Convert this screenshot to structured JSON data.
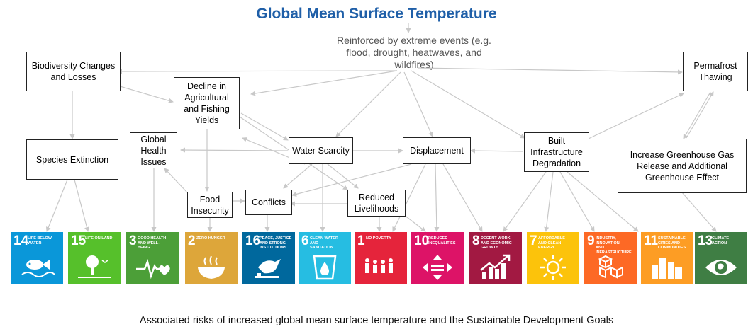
{
  "title": "Global Mean Surface Temperature",
  "note": "Reinforced by extreme events (e.g. flood, drought, heatwaves, and wildfires)",
  "nodes": {
    "biodiversity": "Biodiversity Changes and Losses",
    "decline_agri": "Decline in Agricultural and Fishing Yields",
    "permafrost": "Permafrost Thawing",
    "species": "Species Extinction",
    "global_health": "Global Health Issues",
    "water_scarcity": "Water Scarcity",
    "displacement": "Displacement",
    "built_infra": "Built Infrastructure Degradation",
    "greenhouse": "Increase Greenhouse Gas Release and Additional Greenhouse Effect",
    "food_insecurity": "Food Insecurity",
    "conflicts": "Conflicts",
    "reduced_livelihoods": "Reduced Livelihoods"
  },
  "sdgs": [
    {
      "num": "14",
      "label": "LIFE BELOW WATER",
      "color": "#0a97d9",
      "icon": "fish-icon"
    },
    {
      "num": "15",
      "label": "LIFE ON LAND",
      "color": "#56c02b",
      "icon": "tree-icon"
    },
    {
      "num": "3",
      "label": "GOOD HEALTH AND WELL-BEING",
      "color": "#4c9f38",
      "icon": "heartbeat-icon"
    },
    {
      "num": "2",
      "label": "ZERO HUNGER",
      "color": "#dda63a",
      "icon": "bowl-icon"
    },
    {
      "num": "16",
      "label": "PEACE, JUSTICE AND STRONG INSTITUTIONS",
      "color": "#00689d",
      "icon": "dove-icon"
    },
    {
      "num": "6",
      "label": "CLEAN WATER AND SANITATION",
      "color": "#26bde2",
      "icon": "water-drop-icon"
    },
    {
      "num": "1",
      "label": "NO POVERTY",
      "color": "#e5243b",
      "icon": "family-icon"
    },
    {
      "num": "10",
      "label": "REDUCED INEQUALITIES",
      "color": "#dd1367",
      "icon": "equality-icon"
    },
    {
      "num": "8",
      "label": "DECENT WORK AND ECONOMIC GROWTH",
      "color": "#a21942",
      "icon": "growth-chart-icon"
    },
    {
      "num": "7",
      "label": "AFFORDABLE AND CLEAN ENERGY",
      "color": "#fcc30b",
      "icon": "sun-icon"
    },
    {
      "num": "9",
      "label": "INDUSTRY, INNOVATION AND INFRASTRUCTURE",
      "color": "#fd6925",
      "icon": "cubes-icon"
    },
    {
      "num": "11",
      "label": "SUSTAINABLE CITIES AND COMMUNITIES",
      "color": "#fd9d24",
      "icon": "city-icon"
    },
    {
      "num": "13",
      "label": "CLIMATE ACTION",
      "color": "#3f7e44",
      "icon": "eye-globe-icon"
    }
  ],
  "caption": "Associated risks of increased global mean surface temperature and the Sustainable Development Goals"
}
